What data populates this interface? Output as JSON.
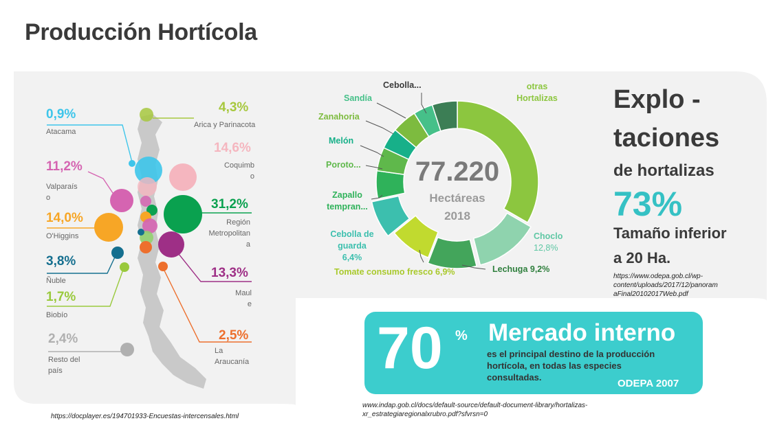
{
  "title": "Producción Hortícola",
  "regions": [
    {
      "pct": "0,9%",
      "name": [
        "Atacama"
      ],
      "color": "#3dc5ea"
    },
    {
      "pct": "4,3%",
      "name": [
        "Arica y Parinacota"
      ],
      "color": "#a7c83e"
    },
    {
      "pct": "14,6%",
      "name": [
        "Coquimb",
        "o"
      ],
      "color": "#f5b6bf"
    },
    {
      "pct": "11,2%",
      "name": [
        "Valparaís",
        "o"
      ],
      "color": "#d564b1"
    },
    {
      "pct": "31,2%",
      "name": [
        "Región",
        "Metropolitan",
        "a"
      ],
      "color": "#0aa14f"
    },
    {
      "pct": "14,0%",
      "name": [
        "O'Higgins"
      ],
      "color": "#f7a626"
    },
    {
      "pct": "3,8%",
      "name": [
        "Ñuble"
      ],
      "color": "#156f8f"
    },
    {
      "pct": "13,3%",
      "name": [
        "Maul",
        "e"
      ],
      "color": "#9e2f86"
    },
    {
      "pct": "1,7%",
      "name": [
        "Biobío"
      ],
      "color": "#99c93c"
    },
    {
      "pct": "2,5%",
      "name": [
        "La",
        "Araucanía"
      ],
      "color": "#ed6f2d"
    },
    {
      "pct": "2,4%",
      "name": [
        "Resto del",
        "país"
      ],
      "color": "#b0b0b0"
    }
  ],
  "chart_data": {
    "type": "pie",
    "center": {
      "value": "77.220",
      "unit": "Hectáreas",
      "year": "2018"
    },
    "slices": [
      {
        "label": "otras Hortalizas",
        "value": null,
        "color": "#8cc63f"
      },
      {
        "label": "Choclo 12,8%",
        "value": 12.8,
        "color": "#8fd3ae"
      },
      {
        "label": "Lechuga 9,2%",
        "value": 9.2,
        "color": "#43a55b"
      },
      {
        "label": "Tomate consumo fresco 6,9%",
        "value": 6.9,
        "color": "#c1da2f"
      },
      {
        "label": "Cebolla de guarda 6,4%",
        "value": 6.4,
        "color": "#3cbfae"
      },
      {
        "label": "Zapallo tempran...",
        "value": null,
        "color": "#2fb25a"
      },
      {
        "label": "Poroto...",
        "value": null,
        "color": "#5fb84b"
      },
      {
        "label": "Melón",
        "value": null,
        "color": "#17b089"
      },
      {
        "label": "Zanahoria",
        "value": null,
        "color": "#7dbb3f"
      },
      {
        "label": "Sandía",
        "value": null,
        "color": "#46c089"
      },
      {
        "label": "Cebolla...",
        "value": null,
        "color": "#3c7e55"
      }
    ]
  },
  "explo": {
    "line1": "Explo -",
    "line2": "taciones",
    "line3": "de hortalizas",
    "pct": "73%",
    "line4": "Tamaño inferior",
    "line5": "a 20 Ha.",
    "source": [
      "https://www.odepa.gob.cl/wp-",
      "content/uploads/2017/12/panoram",
      "aFinal20102017Web.pdf"
    ]
  },
  "market": {
    "big": "70",
    "sup": "%",
    "title": "Mercado interno",
    "desc": [
      "es el principal destino de la producción",
      "hortícola, en todas las especies",
      "consultadas."
    ],
    "org": "ODEPA 2007"
  },
  "sources": {
    "left": "https://docplayer.es/194701933-Encuestas-intercensales.html",
    "bottom": [
      "www.indap.gob.cl/docs/default-source/default-document-library/hortalizas-",
      "xr_estrategiaregionalxrubro.pdf?sfvrsn=0"
    ]
  }
}
